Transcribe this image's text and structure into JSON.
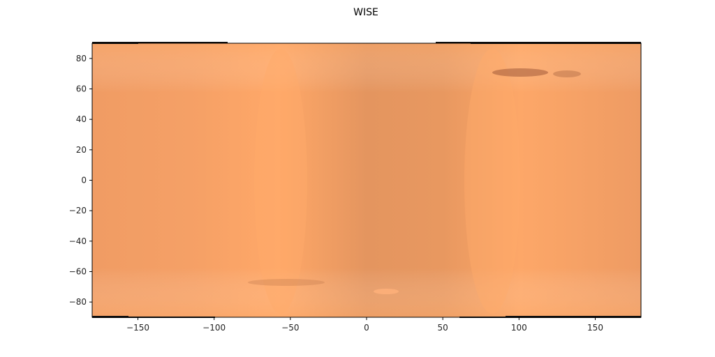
{
  "chart_data": {
    "type": "heatmap",
    "title": "WISE",
    "xlabel": "",
    "ylabel": "",
    "xlim": [
      -180,
      180
    ],
    "ylim": [
      -90,
      90
    ],
    "x_ticks": [
      -150,
      -100,
      -50,
      0,
      50,
      100,
      150
    ],
    "y_ticks": [
      80,
      60,
      40,
      20,
      0,
      -20,
      -40,
      -60,
      -80
    ],
    "x_tick_labels": [
      "−150",
      "−100",
      "−50",
      "0",
      "50",
      "100",
      "150"
    ],
    "y_tick_labels": [
      "80",
      "60",
      "40",
      "20",
      "0",
      "−20",
      "−40",
      "−60",
      "−80"
    ],
    "grid": false,
    "colormap": "copper",
    "colors": {
      "base": "#f0a068",
      "bright": "#ffa868",
      "dark": "#e49460",
      "feature": "#a05a38",
      "pole_band": "#111111"
    }
  }
}
